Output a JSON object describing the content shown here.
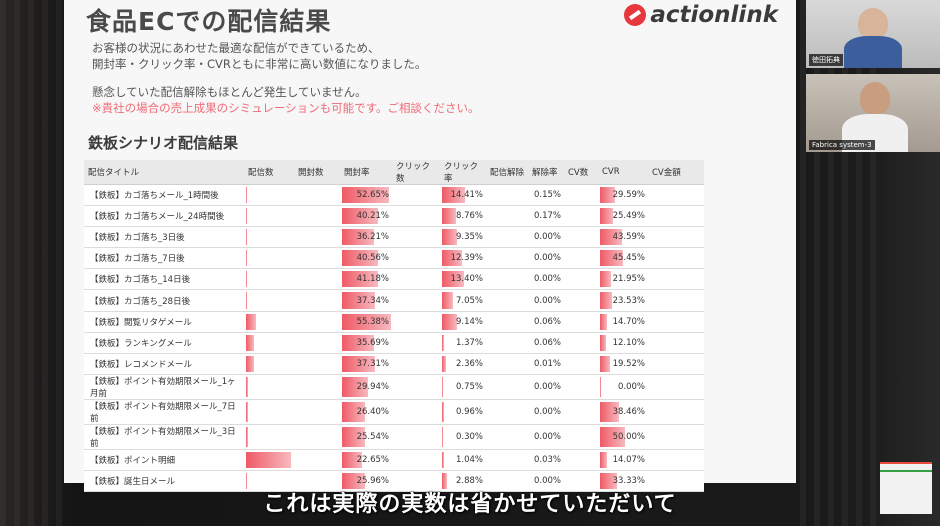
{
  "slide": {
    "title": "食品ECでの配信結果",
    "logo_text": "actionlink",
    "para1_line1": "お客様の状況にあわせた最適な配信ができているため、",
    "para1_line2": "開封率・クリック率・CVRともに非常に高い数値になりました。",
    "para2": "懸念していた配信解除もほとんど発生していません。",
    "para3": "※貴社の場合の売上成果のシミュレーションも可能です。ご相談ください。",
    "section_title": "鉄板シナリオ配信結果"
  },
  "table": {
    "headers": [
      "配信タイトル",
      "配信数",
      "開封数",
      "開封率",
      "クリック数",
      "クリック率",
      "配信解除",
      "解除率",
      "CV数",
      "CVR",
      "CV金額"
    ],
    "rows": [
      {
        "name": "【鉄板】カゴ落ちメール_1時間後",
        "sent": 0.01,
        "open_rate": "52.65%",
        "open_pct": 52.65,
        "click_rate": "14.41%",
        "click_pct": 14.41,
        "unsub_rate": "0.15%",
        "cvr": "29.59%",
        "cvr_pct": 29.59
      },
      {
        "name": "【鉄板】カゴ落ちメール_24時間後",
        "sent": 0.01,
        "open_rate": "40.21%",
        "open_pct": 40.21,
        "click_rate": "8.76%",
        "click_pct": 8.76,
        "unsub_rate": "0.17%",
        "cvr": "25.49%",
        "cvr_pct": 25.49
      },
      {
        "name": "【鉄板】カゴ落ち_3日後",
        "sent": 0.01,
        "open_rate": "36.21%",
        "open_pct": 36.21,
        "click_rate": "9.35%",
        "click_pct": 9.35,
        "unsub_rate": "0.00%",
        "cvr": "43.59%",
        "cvr_pct": 43.59
      },
      {
        "name": "【鉄板】カゴ落ち_7日後",
        "sent": 0.01,
        "open_rate": "40.56%",
        "open_pct": 40.56,
        "click_rate": "12.39%",
        "click_pct": 12.39,
        "unsub_rate": "0.00%",
        "cvr": "45.45%",
        "cvr_pct": 45.45
      },
      {
        "name": "【鉄板】カゴ落ち_14日後",
        "sent": 0.01,
        "open_rate": "41.18%",
        "open_pct": 41.18,
        "click_rate": "13.40%",
        "click_pct": 13.4,
        "unsub_rate": "0.00%",
        "cvr": "21.95%",
        "cvr_pct": 21.95
      },
      {
        "name": "【鉄板】カゴ落ち_28日後",
        "sent": 0.01,
        "open_rate": "37.34%",
        "open_pct": 37.34,
        "click_rate": "7.05%",
        "click_pct": 7.05,
        "unsub_rate": "0.00%",
        "cvr": "23.53%",
        "cvr_pct": 23.53
      },
      {
        "name": "【鉄板】閲覧リタゲメール",
        "sent": 0.2,
        "open_rate": "55.38%",
        "open_pct": 55.38,
        "click_rate": "9.14%",
        "click_pct": 9.14,
        "unsub_rate": "0.06%",
        "cvr": "14.70%",
        "cvr_pct": 14.7
      },
      {
        "name": "【鉄板】ランキングメール",
        "sent": 0.15,
        "open_rate": "35.69%",
        "open_pct": 35.69,
        "click_rate": "1.37%",
        "click_pct": 1.37,
        "unsub_rate": "0.06%",
        "cvr": "12.10%",
        "cvr_pct": 12.1
      },
      {
        "name": "【鉄板】レコメンドメール",
        "sent": 0.15,
        "open_rate": "37.31%",
        "open_pct": 37.31,
        "click_rate": "2.36%",
        "click_pct": 2.36,
        "unsub_rate": "0.01%",
        "cvr": "19.52%",
        "cvr_pct": 19.52
      },
      {
        "name": "【鉄板】ポイント有効期限メール_1ヶ月前",
        "sent": 0.03,
        "open_rate": "29.94%",
        "open_pct": 29.94,
        "click_rate": "0.75%",
        "click_pct": 0.75,
        "unsub_rate": "0.00%",
        "cvr": "0.00%",
        "cvr_pct": 0
      },
      {
        "name": "【鉄板】ポイント有効期限メール_7日前",
        "sent": 0.03,
        "open_rate": "26.40%",
        "open_pct": 26.4,
        "click_rate": "0.96%",
        "click_pct": 0.96,
        "unsub_rate": "0.00%",
        "cvr": "38.46%",
        "cvr_pct": 38.46
      },
      {
        "name": "【鉄板】ポイント有効期限メール_3日前",
        "sent": 0.03,
        "open_rate": "25.54%",
        "open_pct": 25.54,
        "click_rate": "0.30%",
        "click_pct": 0.3,
        "unsub_rate": "0.00%",
        "cvr": "50.00%",
        "cvr_pct": 50
      },
      {
        "name": "【鉄板】ポイント明細",
        "sent": 0.9,
        "open_rate": "22.65%",
        "open_pct": 22.65,
        "click_rate": "1.04%",
        "click_pct": 1.04,
        "unsub_rate": "0.03%",
        "cvr": "14.07%",
        "cvr_pct": 14.07
      },
      {
        "name": "【鉄板】誕生日メール",
        "sent": 0.02,
        "open_rate": "25.96%",
        "open_pct": 25.96,
        "click_rate": "2.88%",
        "click_pct": 2.88,
        "unsub_rate": "0.00%",
        "cvr": "33.33%",
        "cvr_pct": 33.33
      }
    ]
  },
  "participants": [
    {
      "label": "徳田拓典"
    },
    {
      "label": "Fabrica system-3"
    }
  ],
  "caption": "これは実際の実数は省かせていただいて"
}
